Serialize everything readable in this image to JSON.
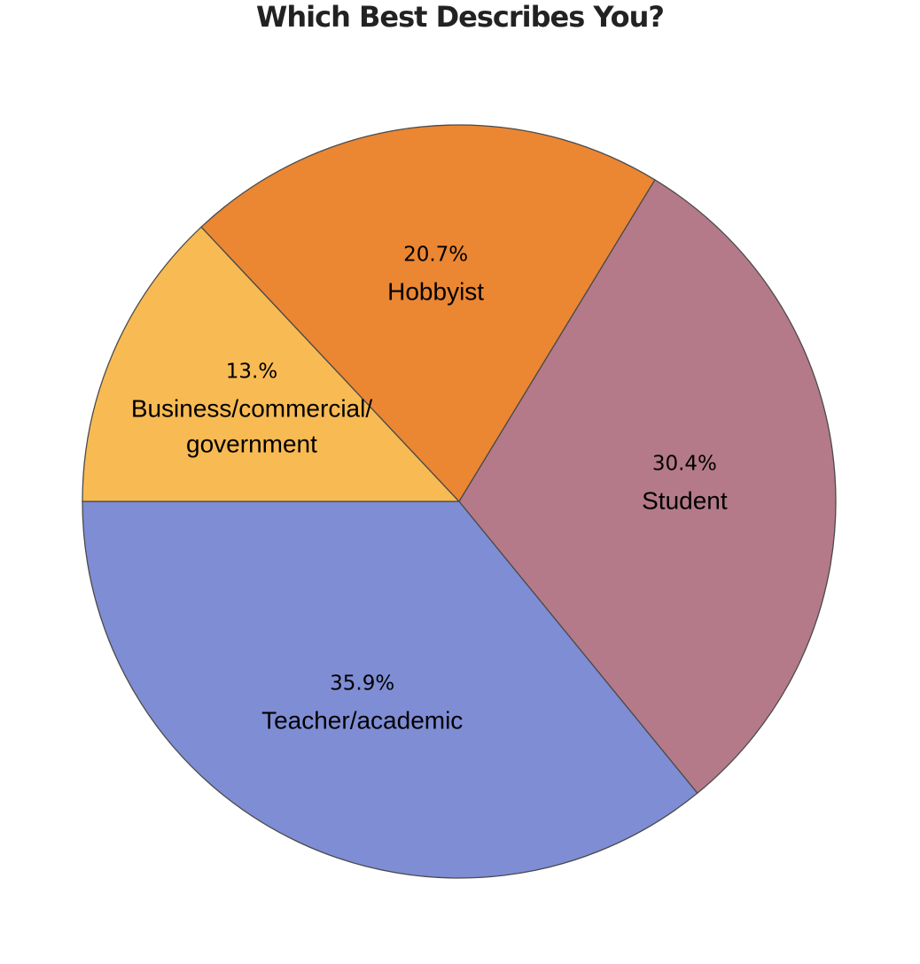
{
  "chart_data": {
    "type": "pie",
    "title": "Which Best Describes You?",
    "start_angle_deg": 180,
    "direction": "clockwise",
    "slices": [
      {
        "label": "Business/commercial/\ngovernment",
        "lines": [
          "Business/commercial/",
          "government"
        ],
        "value": 13.0,
        "pct_text": "13.%",
        "color": "#F8BA53"
      },
      {
        "label": "Hobbyist",
        "lines": [
          "Hobbyist"
        ],
        "value": 20.7,
        "pct_text": "20.7%",
        "color": "#EB8633"
      },
      {
        "label": "Student",
        "lines": [
          "Student"
        ],
        "value": 30.4,
        "pct_text": "30.4%",
        "color": "#B47A8A"
      },
      {
        "label": "Teacher/academic",
        "lines": [
          "Teacher/academic"
        ],
        "value": 35.9,
        "pct_text": "35.9%",
        "color": "#7F8DD4"
      }
    ]
  }
}
